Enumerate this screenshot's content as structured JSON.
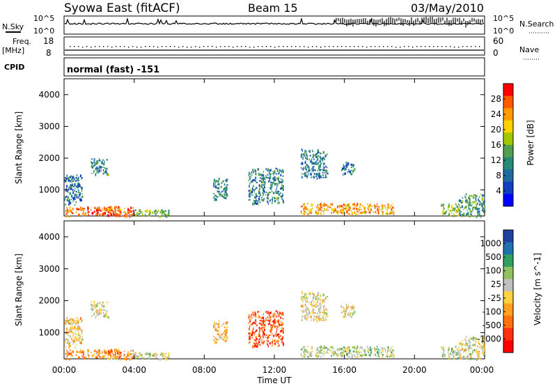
{
  "header": {
    "station": "Syowa East (fitACF)",
    "beam": "Beam 15",
    "date": "03/May/2010"
  },
  "strips": {
    "nsky_label": "N.Sky",
    "nsky_ticks": [
      "10^5",
      "10^0"
    ],
    "nsearch_label": "N.Search",
    "nsearch_ticks": [
      "10^5",
      "10^0"
    ],
    "freq_label": "Freq.",
    "freq_unit": "[MHz]",
    "freq_ticks": [
      "18",
      "8"
    ],
    "nave_label": "Nave",
    "nave_ticks": [
      "60",
      "0"
    ],
    "cpid_label": "CPID",
    "cpid_text": "normal (fast) -151"
  },
  "axes": {
    "ylabel": "Slant Range [km]",
    "xlabel": "Time UT",
    "x_ticks": [
      "00:00",
      "04:00",
      "08:00",
      "12:00",
      "16:00",
      "20:00",
      "00:00"
    ],
    "y_ticks": [
      "1000",
      "2000",
      "3000",
      "4000"
    ]
  },
  "power_colorbar": {
    "label": "Power [dB]",
    "ticks": [
      "28",
      "24",
      "20",
      "16",
      "12",
      "8",
      "4"
    ],
    "colors": [
      "#ff0000",
      "#ff5a00",
      "#ff9a00",
      "#ffd200",
      "#a0c800",
      "#50a050",
      "#2a8a7a",
      "#206aa0",
      "#1040c0",
      "#0000ff"
    ]
  },
  "velocity_colorbar": {
    "label": "Velocity [m s^-1]",
    "ticks": [
      "1000",
      "500",
      "100",
      "25",
      "-25",
      "-100",
      "-500",
      "-1000"
    ],
    "colors": [
      "#2040a0",
      "#2070b0",
      "#30a060",
      "#90c060",
      "#c0c0c0",
      "#ffd040",
      "#ffa020",
      "#ff7010",
      "#ff3010",
      "#ff0000"
    ]
  },
  "chart_data": [
    {
      "type": "heatmap",
      "title": "",
      "quantity": "Power",
      "xlabel": "Time UT",
      "ylabel": "Slant Range [km]",
      "xlim": [
        0,
        24
      ],
      "ylim": [
        180,
        4500
      ],
      "clim": [
        0,
        30
      ],
      "colorbar_label": "Power [dB]",
      "regions": [
        {
          "t": [
            0.0,
            4.0
          ],
          "r": [
            180,
            500
          ],
          "value": 26
        },
        {
          "t": [
            0.0,
            1.0
          ],
          "r": [
            500,
            1500
          ],
          "value": 8
        },
        {
          "t": [
            1.5,
            2.5
          ],
          "r": [
            1500,
            2000
          ],
          "value": 10
        },
        {
          "t": [
            2.5,
            3.2
          ],
          "r": [
            200,
            500
          ],
          "value": 24
        },
        {
          "t": [
            4.0,
            6.0
          ],
          "r": [
            180,
            400
          ],
          "value": 14
        },
        {
          "t": [
            8.5,
            9.3
          ],
          "r": [
            700,
            1400
          ],
          "value": 10
        },
        {
          "t": [
            10.5,
            12.5
          ],
          "r": [
            600,
            1700
          ],
          "value": 10
        },
        {
          "t": [
            13.5,
            18.8
          ],
          "r": [
            250,
            600
          ],
          "value": 22
        },
        {
          "t": [
            13.5,
            15.0
          ],
          "r": [
            1400,
            2300
          ],
          "value": 9
        },
        {
          "t": [
            15.8,
            16.6
          ],
          "r": [
            1500,
            1900
          ],
          "value": 8
        },
        {
          "t": [
            21.5,
            22.5
          ],
          "r": [
            200,
            600
          ],
          "value": 16
        },
        {
          "t": [
            22.5,
            24.0
          ],
          "r": [
            180,
            900
          ],
          "value": 12
        }
      ]
    },
    {
      "type": "heatmap",
      "title": "",
      "quantity": "Velocity",
      "xlabel": "Time UT",
      "ylabel": "Slant Range [km]",
      "xlim": [
        0,
        24
      ],
      "ylim": [
        180,
        4500
      ],
      "clim": [
        -1000,
        1000
      ],
      "colorbar_label": "Velocity [m s^-1]",
      "regions": [
        {
          "t": [
            0.0,
            4.0
          ],
          "r": [
            180,
            500
          ],
          "value": -300
        },
        {
          "t": [
            0.0,
            1.0
          ],
          "r": [
            500,
            1500
          ],
          "value": -100
        },
        {
          "t": [
            1.5,
            2.5
          ],
          "r": [
            1500,
            2000
          ],
          "value": 60
        },
        {
          "t": [
            2.5,
            3.2
          ],
          "r": [
            200,
            500
          ],
          "value": -400
        },
        {
          "t": [
            4.0,
            6.0
          ],
          "r": [
            180,
            400
          ],
          "value": 80
        },
        {
          "t": [
            8.5,
            9.3
          ],
          "r": [
            700,
            1400
          ],
          "value": -200
        },
        {
          "t": [
            10.5,
            12.5
          ],
          "r": [
            600,
            1700
          ],
          "value": -600
        },
        {
          "t": [
            13.5,
            18.8
          ],
          "r": [
            250,
            600
          ],
          "value": 150
        },
        {
          "t": [
            13.5,
            15.0
          ],
          "r": [
            1400,
            2300
          ],
          "value": 0
        },
        {
          "t": [
            15.8,
            16.6
          ],
          "r": [
            1500,
            1900
          ],
          "value": 10
        },
        {
          "t": [
            21.5,
            22.5
          ],
          "r": [
            200,
            600
          ],
          "value": 200
        },
        {
          "t": [
            22.5,
            24.0
          ],
          "r": [
            180,
            900
          ],
          "value": 60
        }
      ]
    }
  ]
}
